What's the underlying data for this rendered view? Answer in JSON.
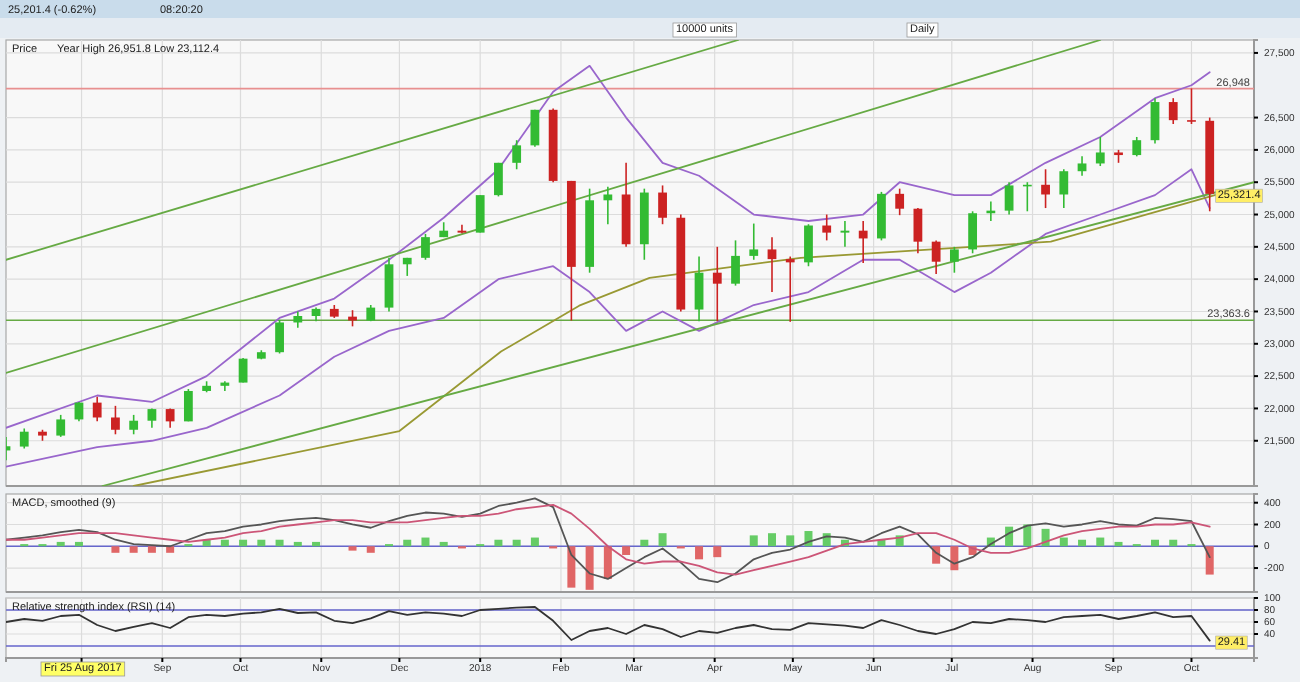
{
  "chart_data": [
    {
      "type": "candlestick",
      "title": "Price",
      "subtitle": "Year High 26,951.8 Low 23,112.4",
      "annotations": [
        "25,201.4 (-0.62%)",
        "08:20:20",
        "10000 units",
        "Daily",
        {
          "text": "25,321.4",
          "x": "2018-10-08",
          "y": 25321.4
        }
      ],
      "x": [
        "2017-07-03",
        "2017-07-10",
        "2017-07-17",
        "2017-07-24",
        "2017-07-31",
        "2017-08-07",
        "2017-08-14",
        "2017-08-21",
        "2017-08-28",
        "2017-09-04",
        "2017-09-11",
        "2017-09-18",
        "2017-09-25",
        "2017-10-02",
        "2017-10-09",
        "2017-10-16",
        "2017-10-23",
        "2017-10-30",
        "2017-11-06",
        "2017-11-13",
        "2017-11-20",
        "2017-11-27",
        "2017-12-04",
        "2017-12-11",
        "2017-12-18",
        "2017-12-25",
        "2018-01-01",
        "2018-01-08",
        "2018-01-15",
        "2018-01-22",
        "2018-01-29",
        "2018-02-05",
        "2018-02-12",
        "2018-02-19",
        "2018-02-26",
        "2018-03-05",
        "2018-03-12",
        "2018-03-19",
        "2018-03-26",
        "2018-04-02",
        "2018-04-09",
        "2018-04-16",
        "2018-04-23",
        "2018-04-30",
        "2018-05-07",
        "2018-05-14",
        "2018-05-21",
        "2018-05-28",
        "2018-06-04",
        "2018-06-11",
        "2018-06-18",
        "2018-06-25",
        "2018-07-02",
        "2018-07-09",
        "2018-07-16",
        "2018-07-23",
        "2018-07-30",
        "2018-08-06",
        "2018-08-13",
        "2018-08-20",
        "2018-08-27",
        "2018-09-03",
        "2018-09-10",
        "2018-09-17",
        "2018-09-24",
        "2018-10-01",
        "2018-10-08"
      ],
      "ohlc": [
        [
          21350,
          21560,
          21200,
          21415
        ],
        [
          21410,
          21690,
          21380,
          21640
        ],
        [
          21640,
          21670,
          21500,
          21580
        ],
        [
          21580,
          21900,
          21560,
          21830
        ],
        [
          21830,
          22100,
          21800,
          22090
        ],
        [
          22090,
          22180,
          21800,
          21860
        ],
        [
          21860,
          22040,
          21600,
          21670
        ],
        [
          21670,
          21900,
          21600,
          21810
        ],
        [
          21810,
          22000,
          21700,
          21990
        ],
        [
          21990,
          22000,
          21700,
          21800
        ],
        [
          21800,
          22300,
          21800,
          22270
        ],
        [
          22270,
          22420,
          22250,
          22350
        ],
        [
          22350,
          22420,
          22270,
          22400
        ],
        [
          22400,
          22780,
          22400,
          22770
        ],
        [
          22770,
          22900,
          22760,
          22870
        ],
        [
          22870,
          23370,
          22850,
          23330
        ],
        [
          23330,
          23500,
          23250,
          23430
        ],
        [
          23430,
          23560,
          23350,
          23540
        ],
        [
          23540,
          23600,
          23400,
          23420
        ],
        [
          23420,
          23520,
          23270,
          23360
        ],
        [
          23360,
          23600,
          23350,
          23560
        ],
        [
          23560,
          24330,
          23500,
          24230
        ],
        [
          24230,
          24330,
          24050,
          24330
        ],
        [
          24330,
          24700,
          24300,
          24650
        ],
        [
          24650,
          24880,
          24650,
          24750
        ],
        [
          24750,
          24840,
          24710,
          24720
        ],
        [
          24720,
          25300,
          24720,
          25300
        ],
        [
          25300,
          25800,
          25280,
          25800
        ],
        [
          25800,
          26150,
          25700,
          26070
        ],
        [
          26070,
          26620,
          26050,
          26620
        ],
        [
          26620,
          26640,
          25500,
          25520
        ],
        [
          25520,
          25520,
          23360,
          24190
        ],
        [
          24190,
          25400,
          24100,
          25220
        ],
        [
          25220,
          25430,
          24850,
          25310
        ],
        [
          25310,
          25800,
          24500,
          24540
        ],
        [
          24540,
          25400,
          24300,
          25340
        ],
        [
          25340,
          25450,
          24850,
          24950
        ],
        [
          24950,
          25000,
          23500,
          23530
        ],
        [
          23530,
          24350,
          23350,
          24100
        ],
        [
          24100,
          24500,
          23350,
          23930
        ],
        [
          23930,
          24600,
          23900,
          24360
        ],
        [
          24360,
          24860,
          24300,
          24460
        ],
        [
          24460,
          24650,
          23800,
          24310
        ],
        [
          24310,
          24350,
          23340,
          24260
        ],
        [
          24260,
          24850,
          24200,
          24830
        ],
        [
          24830,
          25000,
          24600,
          24720
        ],
        [
          24720,
          24900,
          24500,
          24750
        ],
        [
          24750,
          24900,
          24250,
          24630
        ],
        [
          24630,
          25350,
          24600,
          25320
        ],
        [
          25320,
          25400,
          24990,
          25090
        ],
        [
          25090,
          25100,
          24400,
          24580
        ],
        [
          24580,
          24600,
          24080,
          24270
        ],
        [
          24270,
          24500,
          24100,
          24460
        ],
        [
          24460,
          25050,
          24400,
          25020
        ],
        [
          25020,
          25200,
          24900,
          25060
        ],
        [
          25060,
          25500,
          25000,
          25450
        ],
        [
          25450,
          25500,
          25050,
          25460
        ],
        [
          25460,
          25700,
          25100,
          25310
        ],
        [
          25310,
          25700,
          25100,
          25670
        ],
        [
          25670,
          25900,
          25600,
          25790
        ],
        [
          25790,
          26200,
          25750,
          25960
        ],
        [
          25960,
          26000,
          25800,
          25920
        ],
        [
          25920,
          26200,
          25900,
          26150
        ],
        [
          26150,
          26800,
          26100,
          26740
        ],
        [
          26740,
          26800,
          26400,
          26460
        ],
        [
          26460,
          26950,
          26400,
          26450
        ],
        [
          26450,
          26500,
          25050,
          25320
        ]
      ],
      "series": [
        {
          "type": "line",
          "color": "#9966cc",
          "x": [
            "2017-07-03",
            "2017-08-07",
            "2017-08-28",
            "2017-09-18",
            "2017-10-16",
            "2017-11-06",
            "2017-11-27",
            "2017-12-18",
            "2018-01-08",
            "2018-01-29",
            "2018-02-12",
            "2018-02-26",
            "2018-03-12",
            "2018-03-26",
            "2018-04-16",
            "2018-05-07",
            "2018-05-28",
            "2018-06-11",
            "2018-07-02",
            "2018-07-16",
            "2018-08-06",
            "2018-08-27",
            "2018-09-17",
            "2018-10-01",
            "2018-10-08"
          ],
          "values": [
            21700,
            22200,
            22100,
            22500,
            23400,
            23700,
            24300,
            24950,
            25700,
            26900,
            27300,
            26500,
            25800,
            25600,
            25000,
            24900,
            25000,
            25500,
            25300,
            25300,
            25800,
            26200,
            26800,
            27000,
            27200
          ]
        },
        {
          "type": "line",
          "color": "#9966cc",
          "x": [
            "2017-07-03",
            "2017-08-07",
            "2017-08-28",
            "2017-09-18",
            "2017-10-16",
            "2017-11-06",
            "2017-11-27",
            "2017-12-18",
            "2018-01-08",
            "2018-01-29",
            "2018-02-12",
            "2018-02-26",
            "2018-03-12",
            "2018-03-26",
            "2018-04-16",
            "2018-05-07",
            "2018-05-28",
            "2018-06-11",
            "2018-07-02",
            "2018-07-16",
            "2018-08-06",
            "2018-08-27",
            "2018-09-17",
            "2018-10-01",
            "2018-10-08"
          ],
          "values": [
            21100,
            21400,
            21500,
            21700,
            22200,
            22800,
            23200,
            23400,
            24000,
            24200,
            23800,
            23200,
            23500,
            23200,
            23600,
            23800,
            24300,
            24300,
            23800,
            24100,
            24700,
            25000,
            25300,
            25700,
            25100
          ]
        },
        {
          "type": "line",
          "color": "#999933",
          "x": [
            "2017-08-21",
            "2017-12-01",
            "2018-01-09",
            "2018-02-08",
            "2018-03-07",
            "2018-05-04",
            "2018-08-08",
            "2018-10-11"
          ],
          "values": [
            20800,
            21650,
            22880,
            23590,
            24020,
            24330,
            24580,
            25310
          ]
        },
        {
          "type": "line",
          "color": "#66aa44",
          "x": [
            "2017-07-03",
            "2018-04-10"
          ],
          "values": [
            24300,
            27700
          ]
        },
        {
          "type": "line",
          "color": "#66aa44",
          "x": [
            "2017-07-03",
            "2018-08-27"
          ],
          "values": [
            22550,
            27700
          ]
        },
        {
          "type": "line",
          "color": "#66aa44",
          "x": [
            "2017-08-09",
            "2018-10-25"
          ],
          "values": [
            20800,
            25500
          ]
        }
      ],
      "ref_lines": [
        {
          "axis": "y",
          "value": 26948,
          "label": "26,948",
          "color": "#e89090"
        },
        {
          "axis": "y",
          "value": 23363.6,
          "label": "23,363.6",
          "color": "#66aa44"
        }
      ],
      "xlim": [
        "2017-07-03",
        "2018-10-25"
      ],
      "xticks": [
        {
          "value": "2017-08-01",
          "label": null
        },
        {
          "value": "2017-09-01",
          "label": null
        },
        {
          "value": "2017-10-01",
          "label": null
        },
        {
          "value": "2017-11-01",
          "label": null
        },
        {
          "value": "2017-12-01",
          "label": null
        },
        {
          "value": "2018-01-01",
          "label": null
        },
        {
          "value": "2018-02-01",
          "label": null
        },
        {
          "value": "2018-03-01",
          "label": null
        },
        {
          "value": "2018-04-01",
          "label": null
        },
        {
          "value": "2018-05-01",
          "label": null
        },
        {
          "value": "2018-06-01",
          "label": null
        },
        {
          "value": "2018-07-01",
          "label": null
        },
        {
          "value": "2018-08-01",
          "label": null
        },
        {
          "value": "2018-09-01",
          "label": null
        },
        {
          "value": "2018-10-01",
          "label": null
        }
      ],
      "ylim": [
        20800,
        27700
      ],
      "yticks": [
        {
          "value": 21500,
          "label": "21,500"
        },
        {
          "value": 22000,
          "label": "22,000"
        },
        {
          "value": 22500,
          "label": "22,500"
        },
        {
          "value": 23000,
          "label": "23,000"
        },
        {
          "value": 23500,
          "label": "23,500"
        },
        {
          "value": 24000,
          "label": "24,000"
        },
        {
          "value": 24500,
          "label": "24,500"
        },
        {
          "value": 25000,
          "label": "25,000"
        },
        {
          "value": 25500,
          "label": "25,500"
        },
        {
          "value": 26000,
          "label": "26,000"
        },
        {
          "value": 26500,
          "label": "26,500"
        },
        {
          "value": 27500,
          "label": "27,500"
        }
      ],
      "grid": true,
      "tick_labels": "y"
    },
    {
      "type": "line",
      "title": "MACD, smoothed (9)",
      "x": [
        "2017-07-03",
        "2017-07-10",
        "2017-07-17",
        "2017-07-24",
        "2017-07-31",
        "2017-08-07",
        "2017-08-14",
        "2017-08-21",
        "2017-08-28",
        "2017-09-04",
        "2017-09-11",
        "2017-09-18",
        "2017-09-25",
        "2017-10-02",
        "2017-10-09",
        "2017-10-16",
        "2017-10-23",
        "2017-10-30",
        "2017-11-06",
        "2017-11-13",
        "2017-11-20",
        "2017-11-27",
        "2017-12-04",
        "2017-12-11",
        "2017-12-18",
        "2017-12-25",
        "2018-01-01",
        "2018-01-08",
        "2018-01-15",
        "2018-01-22",
        "2018-01-29",
        "2018-02-05",
        "2018-02-12",
        "2018-02-19",
        "2018-02-26",
        "2018-03-05",
        "2018-03-12",
        "2018-03-19",
        "2018-03-26",
        "2018-04-02",
        "2018-04-09",
        "2018-04-16",
        "2018-04-23",
        "2018-04-30",
        "2018-05-07",
        "2018-05-14",
        "2018-05-21",
        "2018-05-28",
        "2018-06-04",
        "2018-06-11",
        "2018-06-18",
        "2018-06-25",
        "2018-07-02",
        "2018-07-09",
        "2018-07-16",
        "2018-07-23",
        "2018-07-30",
        "2018-08-06",
        "2018-08-13",
        "2018-08-20",
        "2018-08-27",
        "2018-09-03",
        "2018-09-10",
        "2018-09-17",
        "2018-09-24",
        "2018-10-01",
        "2018-10-08"
      ],
      "series": [
        {
          "type": "bar",
          "values": [
            0,
            20,
            20,
            40,
            40,
            0,
            -60,
            -60,
            -60,
            -60,
            20,
            60,
            60,
            60,
            60,
            60,
            40,
            40,
            0,
            -40,
            -60,
            20,
            60,
            80,
            40,
            -20,
            20,
            60,
            60,
            80,
            -20,
            -380,
            -400,
            -300,
            -80,
            60,
            120,
            -20,
            -120,
            -100,
            0,
            100,
            120,
            100,
            140,
            120,
            60,
            0,
            60,
            100,
            0,
            -160,
            -220,
            -80,
            80,
            180,
            200,
            160,
            80,
            60,
            80,
            40,
            20,
            60,
            60,
            20,
            -260
          ],
          "colors": [
            "#66cc66",
            "#66cc66",
            "#66cc66",
            "#66cc66",
            "#66cc66",
            "#66cc66",
            "#e06666",
            "#e06666",
            "#e06666",
            "#e06666",
            "#66cc66",
            "#66cc66",
            "#66cc66",
            "#66cc66",
            "#66cc66",
            "#66cc66",
            "#66cc66",
            "#66cc66",
            "#66cc66",
            "#e06666",
            "#e06666",
            "#66cc66",
            "#66cc66",
            "#66cc66",
            "#66cc66",
            "#e06666",
            "#66cc66",
            "#66cc66",
            "#66cc66",
            "#66cc66",
            "#e06666",
            "#e06666",
            "#e06666",
            "#e06666",
            "#e06666",
            "#66cc66",
            "#66cc66",
            "#e06666",
            "#e06666",
            "#e06666",
            "#66cc66",
            "#66cc66",
            "#66cc66",
            "#66cc66",
            "#66cc66",
            "#66cc66",
            "#66cc66",
            "#66cc66",
            "#66cc66",
            "#66cc66",
            "#66cc66",
            "#e06666",
            "#e06666",
            "#e06666",
            "#66cc66",
            "#66cc66",
            "#66cc66",
            "#66cc66",
            "#66cc66",
            "#66cc66",
            "#66cc66",
            "#66cc66",
            "#66cc66",
            "#66cc66",
            "#66cc66",
            "#66cc66",
            "#e06666"
          ]
        },
        {
          "type": "line",
          "color": "#555555",
          "values": [
            60,
            80,
            100,
            130,
            150,
            130,
            60,
            20,
            10,
            0,
            60,
            120,
            140,
            180,
            200,
            230,
            250,
            260,
            240,
            200,
            170,
            230,
            280,
            310,
            300,
            270,
            300,
            370,
            400,
            440,
            360,
            -80,
            -250,
            -300,
            -200,
            -100,
            -20,
            -150,
            -300,
            -330,
            -250,
            -120,
            -60,
            -30,
            40,
            90,
            80,
            40,
            120,
            180,
            110,
            -60,
            -160,
            -100,
            20,
            120,
            190,
            210,
            180,
            200,
            230,
            200,
            190,
            260,
            250,
            230,
            -100
          ]
        },
        {
          "type": "line",
          "color": "#cc5577",
          "values": [
            60,
            60,
            80,
            100,
            120,
            120,
            120,
            100,
            80,
            60,
            40,
            60,
            80,
            120,
            140,
            180,
            200,
            220,
            240,
            240,
            220,
            220,
            220,
            240,
            260,
            280,
            280,
            300,
            340,
            360,
            380,
            300,
            160,
            0,
            -120,
            -160,
            -140,
            -140,
            -180,
            -240,
            -260,
            -220,
            -180,
            -140,
            -100,
            -40,
            20,
            40,
            60,
            80,
            120,
            120,
            60,
            -20,
            -60,
            -60,
            -20,
            40,
            100,
            140,
            160,
            180,
            180,
            200,
            200,
            220,
            180
          ]
        }
      ],
      "ref_lines": [
        {
          "axis": "y",
          "value": 0,
          "color": "#6666cc"
        }
      ],
      "xlim": [
        "2017-07-03",
        "2018-10-25"
      ],
      "xticks": [
        {
          "value": "2017-08-01",
          "label": null
        },
        {
          "value": "2017-09-01",
          "label": null
        },
        {
          "value": "2017-10-01",
          "label": null
        },
        {
          "value": "2017-11-01",
          "label": null
        },
        {
          "value": "2017-12-01",
          "label": null
        },
        {
          "value": "2018-01-01",
          "label": null
        },
        {
          "value": "2018-02-01",
          "label": null
        },
        {
          "value": "2018-03-01",
          "label": null
        },
        {
          "value": "2018-04-01",
          "label": null
        },
        {
          "value": "2018-05-01",
          "label": null
        },
        {
          "value": "2018-06-01",
          "label": null
        },
        {
          "value": "2018-07-01",
          "label": null
        },
        {
          "value": "2018-08-01",
          "label": null
        },
        {
          "value": "2018-09-01",
          "label": null
        },
        {
          "value": "2018-10-01",
          "label": null
        }
      ],
      "ylim": [
        -420,
        480
      ],
      "yticks": [
        -200,
        0,
        200,
        400
      ],
      "grid": true,
      "tick_labels": "y"
    },
    {
      "type": "line",
      "title": "Relative strength index (RSI) (14)",
      "annotations": [
        "Fri 25 Aug 2017",
        {
          "text": "29.41",
          "x": "2018-10-08",
          "y": 29
        }
      ],
      "x": [
        "2017-07-03",
        "2017-07-10",
        "2017-07-17",
        "2017-07-24",
        "2017-07-31",
        "2017-08-07",
        "2017-08-14",
        "2017-08-21",
        "2017-08-28",
        "2017-09-04",
        "2017-09-11",
        "2017-09-18",
        "2017-09-25",
        "2017-10-02",
        "2017-10-09",
        "2017-10-16",
        "2017-10-23",
        "2017-10-30",
        "2017-11-06",
        "2017-11-13",
        "2017-11-20",
        "2017-11-27",
        "2017-12-04",
        "2017-12-11",
        "2017-12-18",
        "2017-12-25",
        "2018-01-01",
        "2018-01-08",
        "2018-01-15",
        "2018-01-22",
        "2018-01-29",
        "2018-02-05",
        "2018-02-12",
        "2018-02-19",
        "2018-02-26",
        "2018-03-05",
        "2018-03-12",
        "2018-03-19",
        "2018-03-26",
        "2018-04-02",
        "2018-04-09",
        "2018-04-16",
        "2018-04-23",
        "2018-04-30",
        "2018-05-07",
        "2018-05-14",
        "2018-05-21",
        "2018-05-28",
        "2018-06-04",
        "2018-06-11",
        "2018-06-18",
        "2018-06-25",
        "2018-07-02",
        "2018-07-09",
        "2018-07-16",
        "2018-07-23",
        "2018-07-30",
        "2018-08-06",
        "2018-08-13",
        "2018-08-20",
        "2018-08-27",
        "2018-09-03",
        "2018-09-10",
        "2018-09-17",
        "2018-09-24",
        "2018-10-01",
        "2018-10-08"
      ],
      "series": [
        {
          "type": "line",
          "color": "#333333",
          "values": [
            60,
            65,
            62,
            70,
            72,
            55,
            45,
            52,
            58,
            50,
            68,
            72,
            70,
            74,
            76,
            82,
            75,
            76,
            62,
            58,
            66,
            78,
            72,
            76,
            74,
            70,
            80,
            82,
            84,
            85,
            62,
            30,
            45,
            50,
            40,
            55,
            48,
            35,
            45,
            42,
            50,
            55,
            48,
            47,
            58,
            56,
            54,
            50,
            63,
            55,
            45,
            40,
            48,
            60,
            58,
            65,
            63,
            60,
            68,
            70,
            72,
            65,
            70,
            76,
            68,
            70,
            29
          ]
        }
      ],
      "ref_lines": [
        {
          "axis": "y",
          "value": 80,
          "color": "#6666cc"
        },
        {
          "axis": "y",
          "value": 20,
          "color": "#6666cc"
        }
      ],
      "xlim": [
        "2017-07-03",
        "2018-10-25"
      ],
      "xticks": [
        {
          "value": "2017-08-01",
          "label": null
        },
        {
          "value": "2017-09-01",
          "label": "Sep"
        },
        {
          "value": "2017-10-01",
          "label": "Oct"
        },
        {
          "value": "2017-11-01",
          "label": "Nov"
        },
        {
          "value": "2017-12-01",
          "label": "Dec"
        },
        {
          "value": "2018-01-01",
          "label": "2018"
        },
        {
          "value": "2018-02-01",
          "label": "Feb"
        },
        {
          "value": "2018-03-01",
          "label": "Mar"
        },
        {
          "value": "2018-04-01",
          "label": "Apr"
        },
        {
          "value": "2018-05-01",
          "label": "May"
        },
        {
          "value": "2018-06-01",
          "label": "Jun"
        },
        {
          "value": "2018-07-01",
          "label": "Jul"
        },
        {
          "value": "2018-08-01",
          "label": "Aug"
        },
        {
          "value": "2018-09-01",
          "label": "Sep"
        },
        {
          "value": "2018-10-01",
          "label": "Oct"
        }
      ],
      "ylim": [
        0,
        100
      ],
      "yticks": [
        40,
        60,
        80,
        100
      ],
      "grid": true
    }
  ]
}
